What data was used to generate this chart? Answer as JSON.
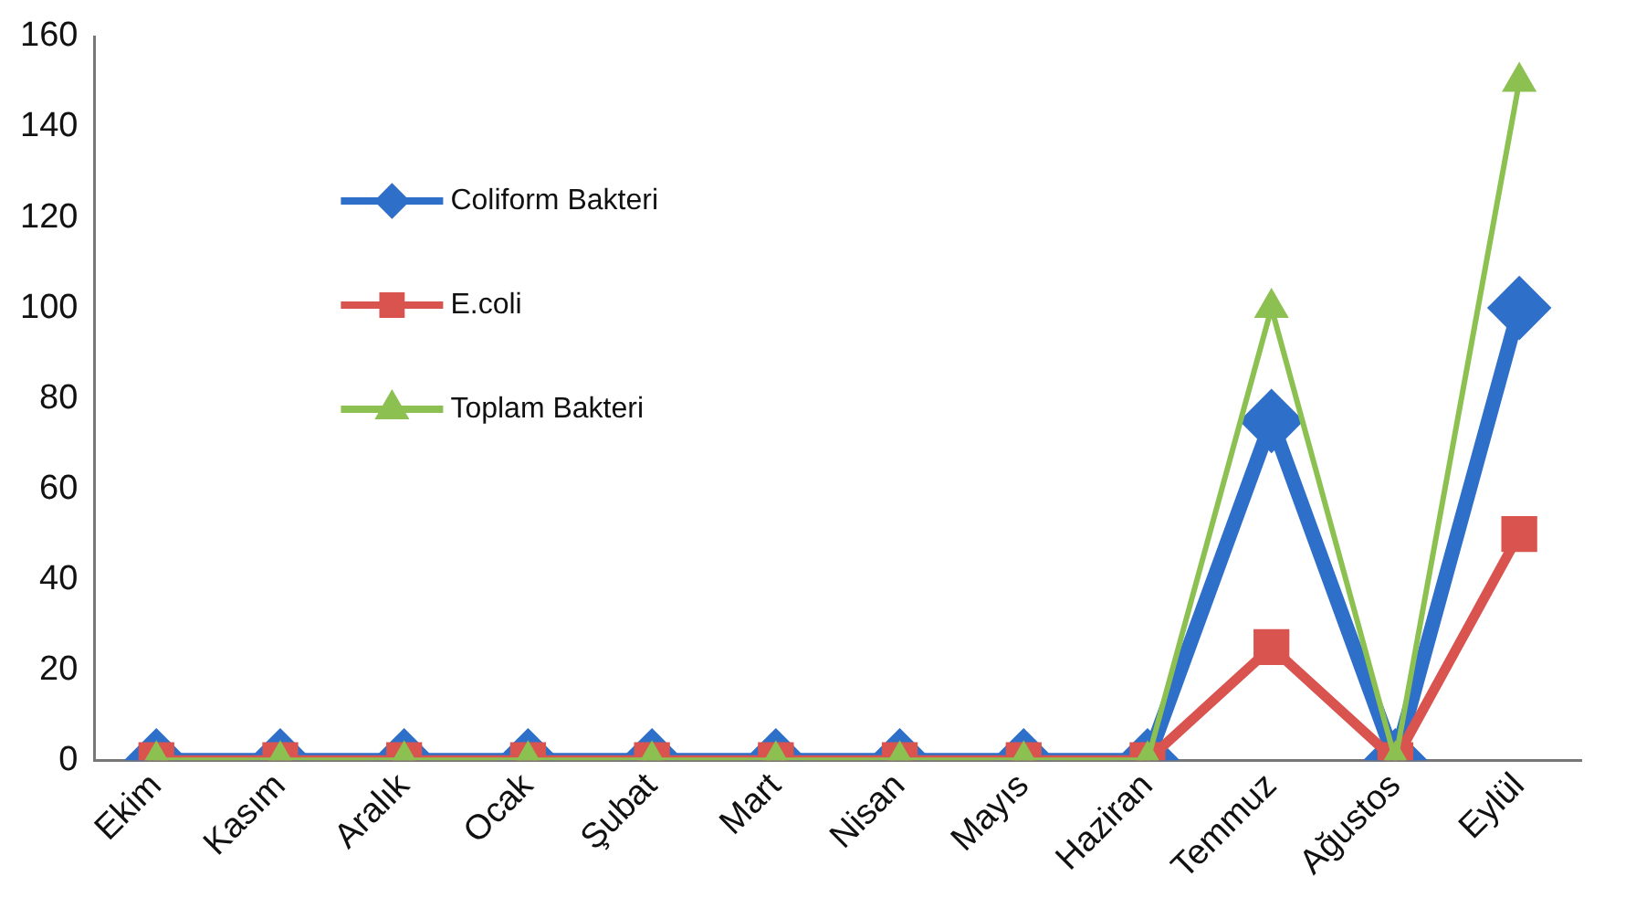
{
  "chart_data": {
    "type": "line",
    "categories": [
      "Ekim",
      "Kasım",
      "Aralık",
      "Ocak",
      "Şubat",
      "Mart",
      "Nisan",
      "Mayıs",
      "Haziran",
      "Temmuz",
      "Ağustos",
      "Eylül"
    ],
    "series": [
      {
        "name": "Coliform Bakteri",
        "color": "#2e6fc9",
        "marker": "diamond",
        "values": [
          0,
          0,
          0,
          0,
          0,
          0,
          0,
          0,
          0,
          75,
          0,
          100
        ]
      },
      {
        "name": "E.coli",
        "color": "#d9534f",
        "marker": "square",
        "values": [
          0,
          0,
          0,
          0,
          0,
          0,
          0,
          0,
          0,
          25,
          0,
          50
        ]
      },
      {
        "name": "Toplam Bakteri",
        "color": "#8cc152",
        "marker": "triangle",
        "values": [
          0,
          0,
          0,
          0,
          0,
          0,
          0,
          0,
          0,
          100,
          0,
          150
        ]
      }
    ],
    "ylim": [
      0,
      160
    ],
    "yticks": [
      0,
      20,
      40,
      60,
      80,
      100,
      120,
      140,
      160
    ],
    "grid": false,
    "legend": "top left",
    "line_style": "solid"
  }
}
